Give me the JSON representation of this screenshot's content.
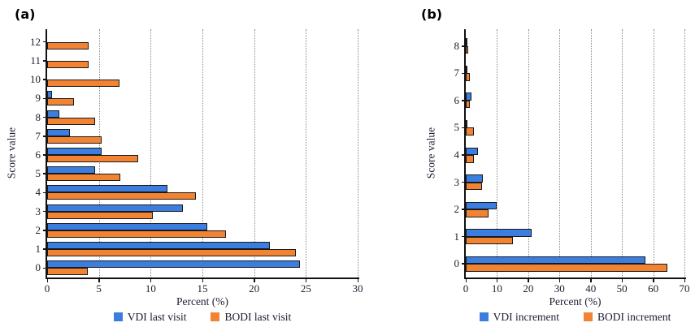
{
  "figure": {
    "panels": [
      {
        "tag": "(a)"
      },
      {
        "tag": "(b)"
      }
    ]
  },
  "colors": {
    "vdi_blue": "#3c7ee0",
    "bodi_orange": "#f28333",
    "axis": "#111111",
    "grid": "#8a8a8a",
    "text": "#1c1c30"
  },
  "chart_data": [
    {
      "type": "bar",
      "orientation": "horizontal",
      "panel": "(a)",
      "title": "",
      "xlabel": "Percent (%)",
      "ylabel": "Score value",
      "xlim": [
        0,
        30
      ],
      "xticks": [
        0,
        5,
        10,
        15,
        20,
        25,
        30
      ],
      "grid": true,
      "legend_position": "bottom",
      "categories": [
        0,
        1,
        2,
        3,
        4,
        5,
        6,
        7,
        8,
        9,
        10,
        11,
        12
      ],
      "series": [
        {
          "name": "VDI last visit",
          "color": "#3c7ee0",
          "values": [
            24.4,
            21.5,
            15.5,
            13.1,
            11.6,
            4.6,
            5.3,
            2.2,
            1.2,
            0.5,
            0,
            0,
            0
          ]
        },
        {
          "name": "BODI last visit",
          "color": "#f28333",
          "values": [
            3.9,
            24.0,
            17.3,
            10.2,
            14.4,
            7.1,
            8.8,
            5.3,
            4.6,
            2.6,
            7.0,
            4.0,
            4.0
          ]
        }
      ]
    },
    {
      "type": "bar",
      "orientation": "horizontal",
      "panel": "(b)",
      "title": "",
      "xlabel": "Percent (%)",
      "ylabel": "Score value",
      "xlim": [
        0,
        70
      ],
      "xticks": [
        0,
        10,
        20,
        30,
        40,
        50,
        60,
        70
      ],
      "grid": true,
      "legend_position": "bottom",
      "categories": [
        0,
        1,
        2,
        3,
        4,
        5,
        6,
        7,
        8
      ],
      "series": [
        {
          "name": "VDI increment",
          "color": "#3c7ee0",
          "values": [
            57.5,
            21.0,
            10.0,
            5.5,
            3.8,
            0.6,
            1.7,
            0.5,
            0.1
          ]
        },
        {
          "name": "BODI increment",
          "color": "#f28333",
          "values": [
            64.5,
            15.0,
            7.3,
            5.2,
            2.5,
            2.6,
            1.3,
            1.2,
            0.8
          ]
        }
      ]
    }
  ]
}
